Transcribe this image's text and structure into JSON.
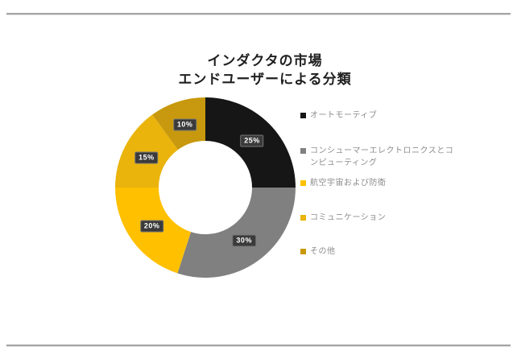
{
  "figure": {
    "background": "#ffffff",
    "rule_color": "#a4a4a4"
  },
  "chart_data": {
    "type": "pie",
    "subtype": "donut",
    "title": "インダクタの市場 エンドユーザーによる分類",
    "title_lines": [
      "インダクタの市場",
      "エンドユーザーによる分類"
    ],
    "direction": "clockwise",
    "start_angle_deg": 0,
    "inner_radius_ratio": 0.52,
    "legend_position": "right",
    "grid": false,
    "series": [
      {
        "label": "オートモーティブ",
        "value": 25,
        "data_label": "25%",
        "color": "#161616"
      },
      {
        "label": "コンシューマーエレクトロニクスとコンピューティング",
        "value": 30,
        "data_label": "30%",
        "color": "#808080"
      },
      {
        "label": "航空宇宙および防衛",
        "value": 20,
        "data_label": "20%",
        "color": "#ffc000"
      },
      {
        "label": "コミュニケーション",
        "value": 15,
        "data_label": "15%",
        "color": "#eab40d"
      },
      {
        "label": "その他",
        "value": 10,
        "data_label": "10%",
        "color": "#c8990e"
      }
    ],
    "data_label_style": {
      "background": "#3a3a3a",
      "border": "#757575",
      "text": "#ffffff"
    }
  }
}
